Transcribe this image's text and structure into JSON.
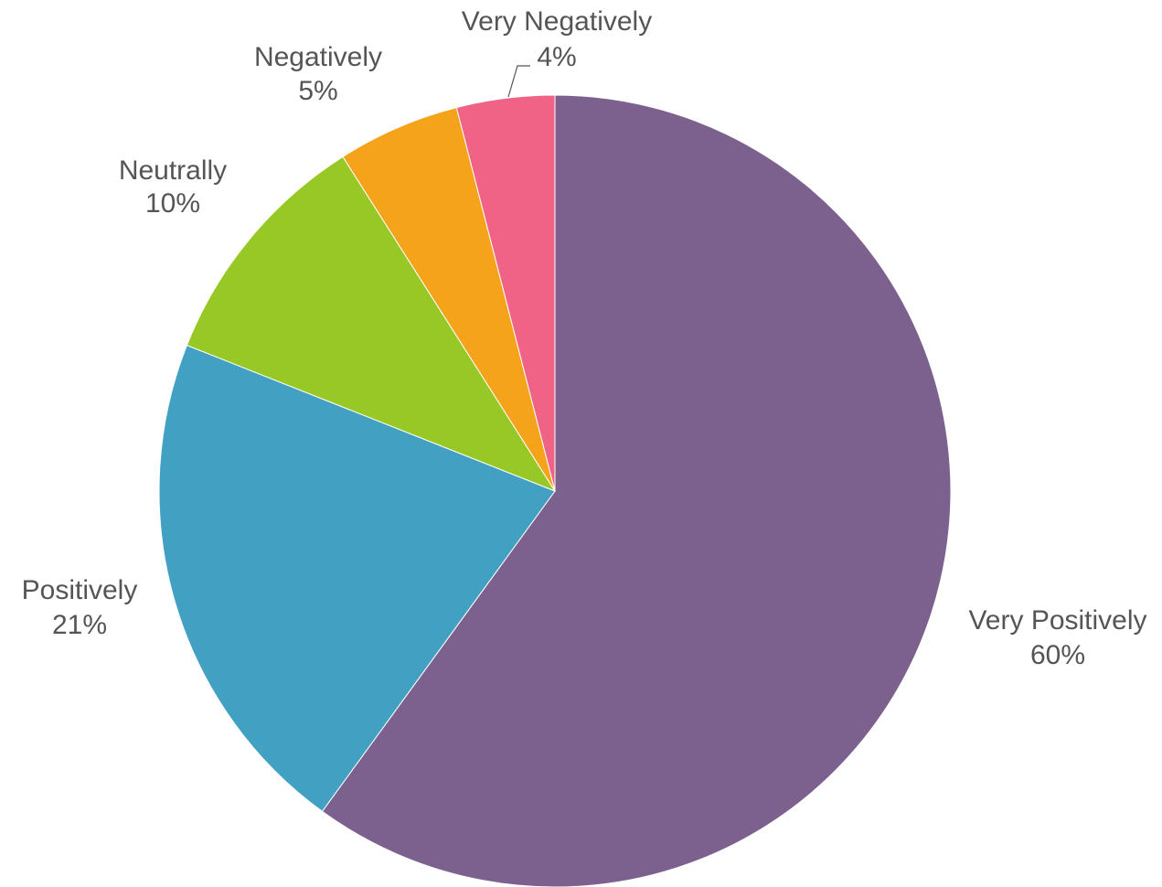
{
  "chart_data": {
    "type": "pie",
    "slices": [
      {
        "label": "Very Positively",
        "value": 60,
        "display": "60%",
        "color": "#7c608d"
      },
      {
        "label": "Positively",
        "value": 21,
        "display": "21%",
        "color": "#42a1c2"
      },
      {
        "label": "Neutrally",
        "value": 10,
        "display": "10%",
        "color": "#97c825"
      },
      {
        "label": "Negatively",
        "value": 5,
        "display": "5%",
        "color": "#f4a31b"
      },
      {
        "label": "Very Negatively",
        "value": 4,
        "display": "4%",
        "color": "#f06387"
      }
    ],
    "start_angle_deg": 0,
    "direction": "clockwise",
    "legend": "none",
    "labels": "outside"
  }
}
